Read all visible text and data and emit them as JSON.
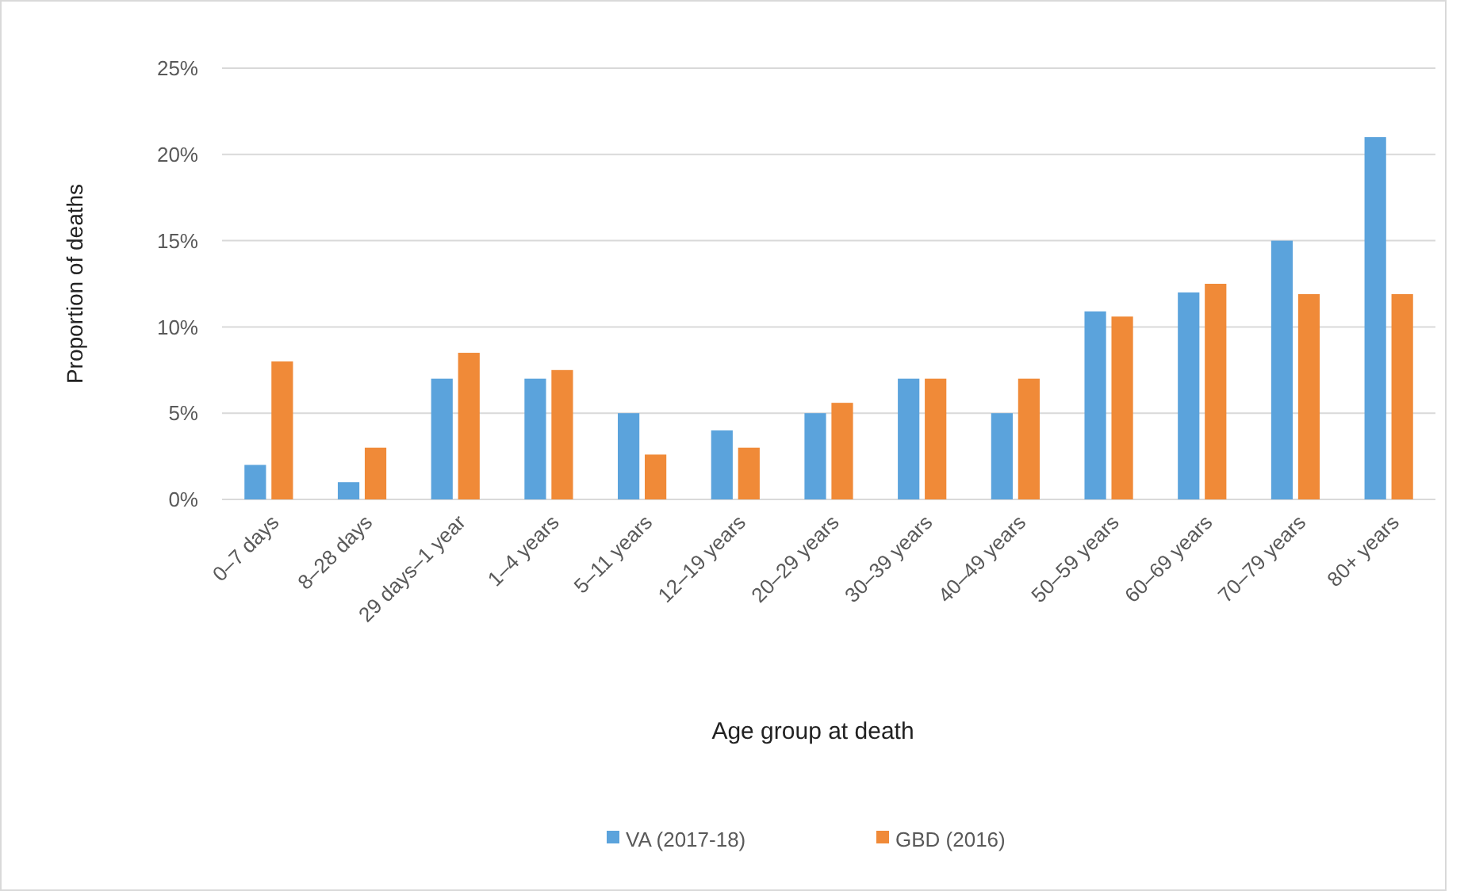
{
  "chart_data": {
    "type": "bar",
    "xlabel": "Age group at death",
    "ylabel": "Proportion of deaths",
    "categories": [
      "0–7 days",
      "8–28 days",
      "29 days–1 year",
      "1–4 years",
      "5–11 years",
      "12–19 years",
      "20–29 years",
      "30–39 years",
      "40–49 years",
      "50–59 years",
      "60–69 years",
      "70–79 years",
      "80+ years"
    ],
    "series": [
      {
        "name": "VA (2017-18)",
        "color": "#5ba3dc",
        "values": [
          2,
          1,
          7,
          7,
          5,
          4,
          5,
          7,
          5,
          10.9,
          12,
          15,
          21
        ]
      },
      {
        "name": "GBD (2016)",
        "color": "#f08a38",
        "values": [
          8,
          3,
          8.5,
          7.5,
          2.6,
          3,
          5.6,
          7,
          7,
          10.6,
          12.5,
          11.9,
          11.9
        ]
      }
    ],
    "ylim": [
      0,
      25
    ],
    "yticks": [
      {
        "value": 0,
        "label": "0%"
      },
      {
        "value": 5,
        "label": "5%"
      },
      {
        "value": 10,
        "label": "10%"
      },
      {
        "value": 15,
        "label": "15%"
      },
      {
        "value": 20,
        "label": "20%"
      },
      {
        "value": 25,
        "label": "25%"
      }
    ],
    "grid": "y",
    "legend": "bottom"
  }
}
